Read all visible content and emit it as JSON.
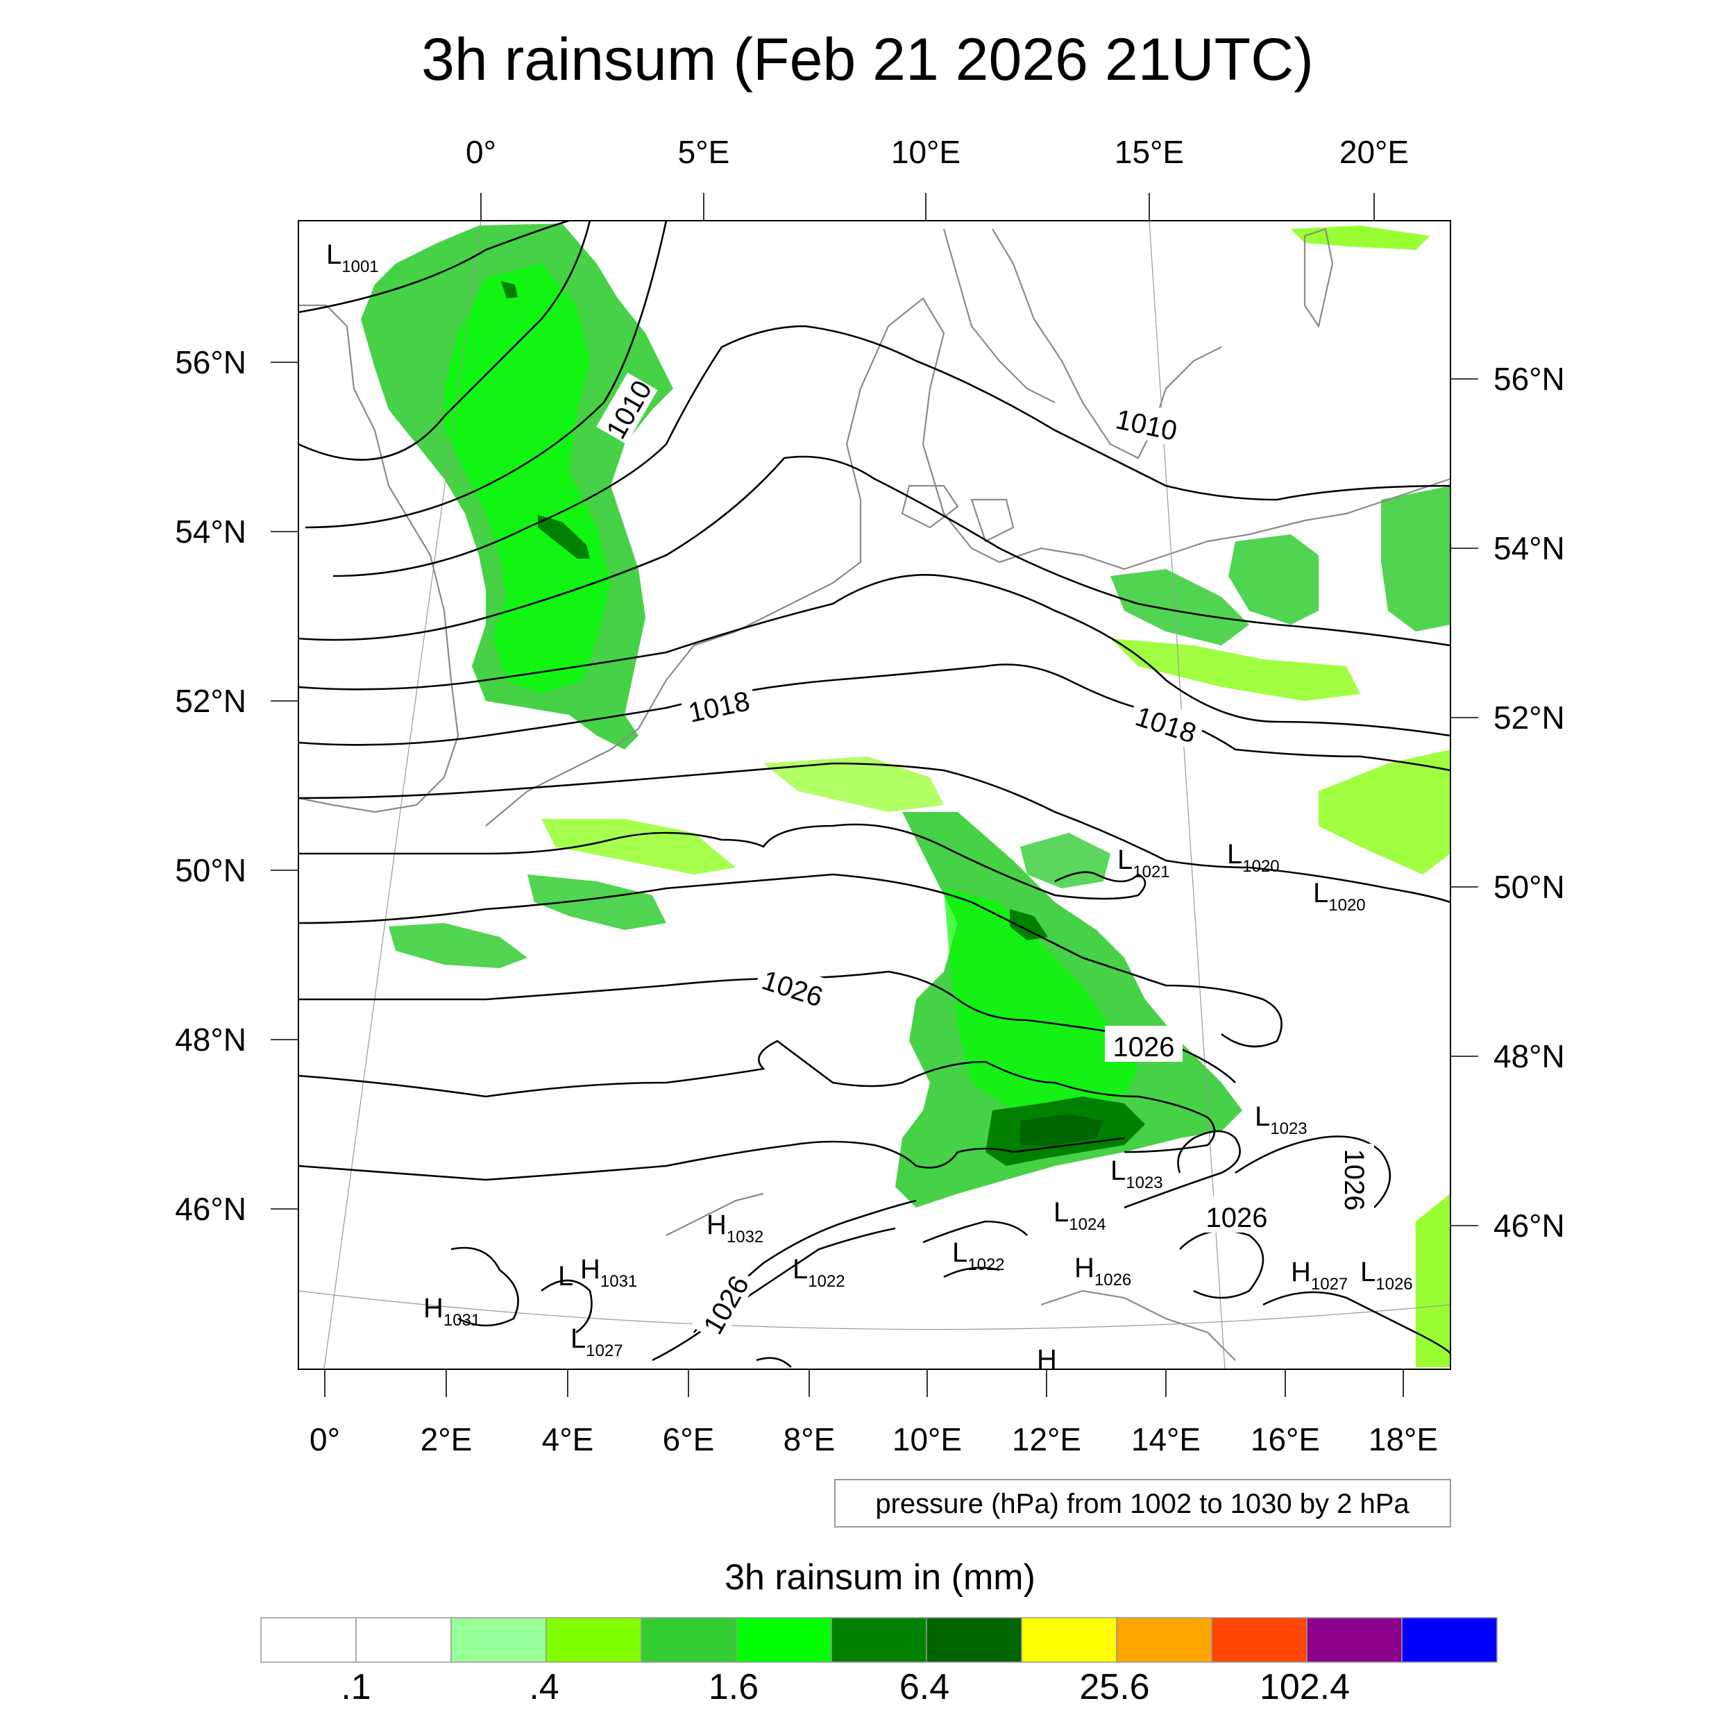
{
  "title": "3h rainsum (Feb 21 2026 21UTC)",
  "axes": {
    "top_lon_labels": [
      "0°",
      "5°E",
      "10°E",
      "15°E",
      "20°E"
    ],
    "bottom_lon_labels": [
      "0°",
      "2°E",
      "4°E",
      "6°E",
      "8°E",
      "10°E",
      "12°E",
      "14°E",
      "16°E",
      "18°E"
    ],
    "left_lat_labels": [
      "56°N",
      "54°N",
      "52°N",
      "50°N",
      "48°N",
      "46°N"
    ],
    "right_lat_labels": [
      "56°N",
      "54°N",
      "52°N",
      "50°N",
      "48°N",
      "46°N"
    ]
  },
  "isobar_labels": [
    "1010",
    "1010",
    "1018",
    "1018",
    "1026",
    "1026",
    "1026",
    "1026",
    "1026"
  ],
  "pressure_centers": [
    {
      "kind": "L",
      "value": "1001"
    },
    {
      "kind": "L",
      "value": "1021"
    },
    {
      "kind": "L",
      "value": "1020"
    },
    {
      "kind": "L",
      "value": "1020"
    },
    {
      "kind": "L",
      "value": "1023"
    },
    {
      "kind": "L",
      "value": "1023"
    },
    {
      "kind": "L",
      "value": "1024"
    },
    {
      "kind": "H",
      "value": "1032"
    },
    {
      "kind": "H",
      "value": "1031"
    },
    {
      "kind": "L",
      "value": ""
    },
    {
      "kind": "L",
      "value": "1022"
    },
    {
      "kind": "L",
      "value": "1022"
    },
    {
      "kind": "H",
      "value": "1026"
    },
    {
      "kind": "H",
      "value": "1027"
    },
    {
      "kind": "L",
      "value": "1026"
    },
    {
      "kind": "H",
      "value": "1031"
    },
    {
      "kind": "L",
      "value": "1027"
    },
    {
      "kind": "H",
      "value": ""
    }
  ],
  "contour_info": "pressure (hPa) from 1002 to 1030 by 2 hPa",
  "colorbar": {
    "title": "3h rainsum in (mm)",
    "colors": [
      "#ffffff",
      "#ffffff",
      "#99ff99",
      "#80ff00",
      "#33cc33",
      "#00ff00",
      "#008000",
      "#006400",
      "#ffff00",
      "#ffa500",
      "#ff4500",
      "#8b008b",
      "#0000ff"
    ],
    "tick_labels": [
      ".1",
      ".4",
      "1.6",
      "6.4",
      "25.6",
      "102.4"
    ]
  }
}
